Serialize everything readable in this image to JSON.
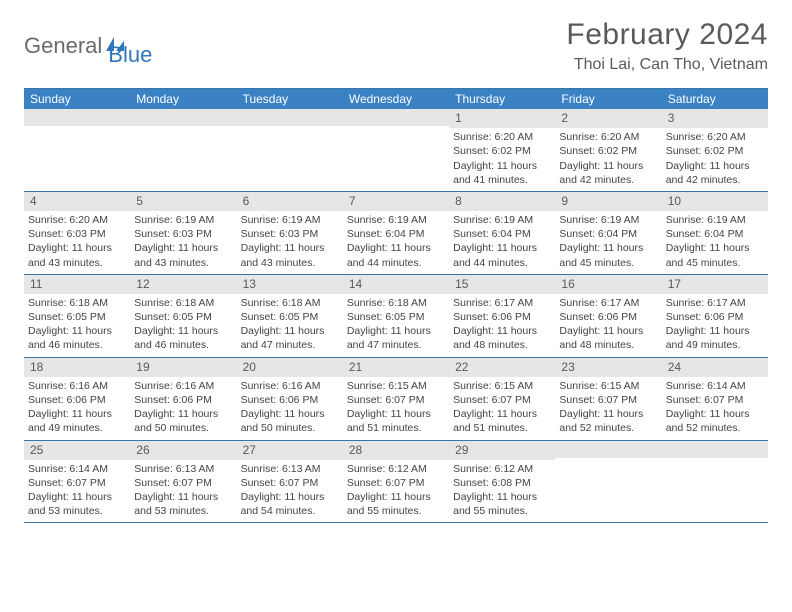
{
  "logo": {
    "text_a": "General",
    "text_b": "Blue",
    "text_color": "#6b6b6b",
    "accent_color": "#2f77b8"
  },
  "title": "February 2024",
  "location": "Thoi Lai, Can Tho, Vietnam",
  "colors": {
    "header_bg": "#3a82c4",
    "header_text": "#ffffff",
    "border": "#3a75a8",
    "daynum_bg": "#e6e6e6",
    "body_text": "#444444",
    "page_bg": "#ffffff"
  },
  "dayHeaders": [
    "Sunday",
    "Monday",
    "Tuesday",
    "Wednesday",
    "Thursday",
    "Friday",
    "Saturday"
  ],
  "weeks": [
    [
      {
        "empty": true
      },
      {
        "empty": true
      },
      {
        "empty": true
      },
      {
        "empty": true
      },
      {
        "num": "1",
        "sunrise": "Sunrise: 6:20 AM",
        "sunset": "Sunset: 6:02 PM",
        "daylight": "Daylight: 11 hours and 41 minutes."
      },
      {
        "num": "2",
        "sunrise": "Sunrise: 6:20 AM",
        "sunset": "Sunset: 6:02 PM",
        "daylight": "Daylight: 11 hours and 42 minutes."
      },
      {
        "num": "3",
        "sunrise": "Sunrise: 6:20 AM",
        "sunset": "Sunset: 6:02 PM",
        "daylight": "Daylight: 11 hours and 42 minutes."
      }
    ],
    [
      {
        "num": "4",
        "sunrise": "Sunrise: 6:20 AM",
        "sunset": "Sunset: 6:03 PM",
        "daylight": "Daylight: 11 hours and 43 minutes."
      },
      {
        "num": "5",
        "sunrise": "Sunrise: 6:19 AM",
        "sunset": "Sunset: 6:03 PM",
        "daylight": "Daylight: 11 hours and 43 minutes."
      },
      {
        "num": "6",
        "sunrise": "Sunrise: 6:19 AM",
        "sunset": "Sunset: 6:03 PM",
        "daylight": "Daylight: 11 hours and 43 minutes."
      },
      {
        "num": "7",
        "sunrise": "Sunrise: 6:19 AM",
        "sunset": "Sunset: 6:04 PM",
        "daylight": "Daylight: 11 hours and 44 minutes."
      },
      {
        "num": "8",
        "sunrise": "Sunrise: 6:19 AM",
        "sunset": "Sunset: 6:04 PM",
        "daylight": "Daylight: 11 hours and 44 minutes."
      },
      {
        "num": "9",
        "sunrise": "Sunrise: 6:19 AM",
        "sunset": "Sunset: 6:04 PM",
        "daylight": "Daylight: 11 hours and 45 minutes."
      },
      {
        "num": "10",
        "sunrise": "Sunrise: 6:19 AM",
        "sunset": "Sunset: 6:04 PM",
        "daylight": "Daylight: 11 hours and 45 minutes."
      }
    ],
    [
      {
        "num": "11",
        "sunrise": "Sunrise: 6:18 AM",
        "sunset": "Sunset: 6:05 PM",
        "daylight": "Daylight: 11 hours and 46 minutes."
      },
      {
        "num": "12",
        "sunrise": "Sunrise: 6:18 AM",
        "sunset": "Sunset: 6:05 PM",
        "daylight": "Daylight: 11 hours and 46 minutes."
      },
      {
        "num": "13",
        "sunrise": "Sunrise: 6:18 AM",
        "sunset": "Sunset: 6:05 PM",
        "daylight": "Daylight: 11 hours and 47 minutes."
      },
      {
        "num": "14",
        "sunrise": "Sunrise: 6:18 AM",
        "sunset": "Sunset: 6:05 PM",
        "daylight": "Daylight: 11 hours and 47 minutes."
      },
      {
        "num": "15",
        "sunrise": "Sunrise: 6:17 AM",
        "sunset": "Sunset: 6:06 PM",
        "daylight": "Daylight: 11 hours and 48 minutes."
      },
      {
        "num": "16",
        "sunrise": "Sunrise: 6:17 AM",
        "sunset": "Sunset: 6:06 PM",
        "daylight": "Daylight: 11 hours and 48 minutes."
      },
      {
        "num": "17",
        "sunrise": "Sunrise: 6:17 AM",
        "sunset": "Sunset: 6:06 PM",
        "daylight": "Daylight: 11 hours and 49 minutes."
      }
    ],
    [
      {
        "num": "18",
        "sunrise": "Sunrise: 6:16 AM",
        "sunset": "Sunset: 6:06 PM",
        "daylight": "Daylight: 11 hours and 49 minutes."
      },
      {
        "num": "19",
        "sunrise": "Sunrise: 6:16 AM",
        "sunset": "Sunset: 6:06 PM",
        "daylight": "Daylight: 11 hours and 50 minutes."
      },
      {
        "num": "20",
        "sunrise": "Sunrise: 6:16 AM",
        "sunset": "Sunset: 6:06 PM",
        "daylight": "Daylight: 11 hours and 50 minutes."
      },
      {
        "num": "21",
        "sunrise": "Sunrise: 6:15 AM",
        "sunset": "Sunset: 6:07 PM",
        "daylight": "Daylight: 11 hours and 51 minutes."
      },
      {
        "num": "22",
        "sunrise": "Sunrise: 6:15 AM",
        "sunset": "Sunset: 6:07 PM",
        "daylight": "Daylight: 11 hours and 51 minutes."
      },
      {
        "num": "23",
        "sunrise": "Sunrise: 6:15 AM",
        "sunset": "Sunset: 6:07 PM",
        "daylight": "Daylight: 11 hours and 52 minutes."
      },
      {
        "num": "24",
        "sunrise": "Sunrise: 6:14 AM",
        "sunset": "Sunset: 6:07 PM",
        "daylight": "Daylight: 11 hours and 52 minutes."
      }
    ],
    [
      {
        "num": "25",
        "sunrise": "Sunrise: 6:14 AM",
        "sunset": "Sunset: 6:07 PM",
        "daylight": "Daylight: 11 hours and 53 minutes."
      },
      {
        "num": "26",
        "sunrise": "Sunrise: 6:13 AM",
        "sunset": "Sunset: 6:07 PM",
        "daylight": "Daylight: 11 hours and 53 minutes."
      },
      {
        "num": "27",
        "sunrise": "Sunrise: 6:13 AM",
        "sunset": "Sunset: 6:07 PM",
        "daylight": "Daylight: 11 hours and 54 minutes."
      },
      {
        "num": "28",
        "sunrise": "Sunrise: 6:12 AM",
        "sunset": "Sunset: 6:07 PM",
        "daylight": "Daylight: 11 hours and 55 minutes."
      },
      {
        "num": "29",
        "sunrise": "Sunrise: 6:12 AM",
        "sunset": "Sunset: 6:08 PM",
        "daylight": "Daylight: 11 hours and 55 minutes."
      },
      {
        "empty": true
      },
      {
        "empty": true
      }
    ]
  ]
}
